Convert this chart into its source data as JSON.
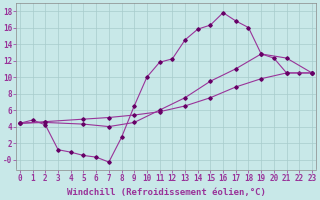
{
  "background_color": "#c8e8e8",
  "grid_color": "#a8cccc",
  "line_color": "#993399",
  "marker_color": "#660066",
  "xlim": [
    -0.3,
    23.3
  ],
  "ylim": [
    -1.2,
    19.0
  ],
  "xticks": [
    0,
    1,
    2,
    3,
    4,
    5,
    6,
    7,
    8,
    9,
    10,
    11,
    12,
    13,
    14,
    15,
    16,
    17,
    18,
    19,
    20,
    21,
    22,
    23
  ],
  "yticks": [
    0,
    2,
    4,
    6,
    8,
    10,
    12,
    14,
    16,
    18
  ],
  "ytick_labels": [
    "-0",
    "2",
    "4",
    "6",
    "8",
    "10",
    "12",
    "14",
    "16",
    "18"
  ],
  "xlabel": "Windchill (Refroidissement éolien,°C)",
  "xlabel_fontsize": 6.5,
  "tick_fontsize": 5.5,
  "line1_x": [
    0,
    1,
    2,
    3,
    4,
    5,
    6,
    7,
    8,
    9,
    10,
    11,
    12,
    13,
    14,
    15,
    16,
    17,
    18,
    19,
    20,
    21,
    22,
    23
  ],
  "line1_y": [
    4.4,
    4.8,
    4.2,
    1.2,
    0.9,
    0.5,
    0.3,
    -0.3,
    2.7,
    6.5,
    10.0,
    11.8,
    12.2,
    14.5,
    15.8,
    16.3,
    17.8,
    16.8,
    16.0,
    12.8,
    12.3,
    10.5,
    10.5,
    10.5
  ],
  "line2_x": [
    0,
    2,
    5,
    7,
    9,
    11,
    13,
    15,
    17,
    19,
    21,
    23
  ],
  "line2_y": [
    4.4,
    4.6,
    4.9,
    5.1,
    5.4,
    5.8,
    6.5,
    7.5,
    8.8,
    9.8,
    10.5,
    10.5
  ],
  "line3_x": [
    0,
    2,
    5,
    7,
    9,
    11,
    13,
    15,
    17,
    19,
    21,
    23
  ],
  "line3_y": [
    4.4,
    4.5,
    4.3,
    4.0,
    4.5,
    6.0,
    7.5,
    9.5,
    11.0,
    12.8,
    12.3,
    10.5
  ]
}
